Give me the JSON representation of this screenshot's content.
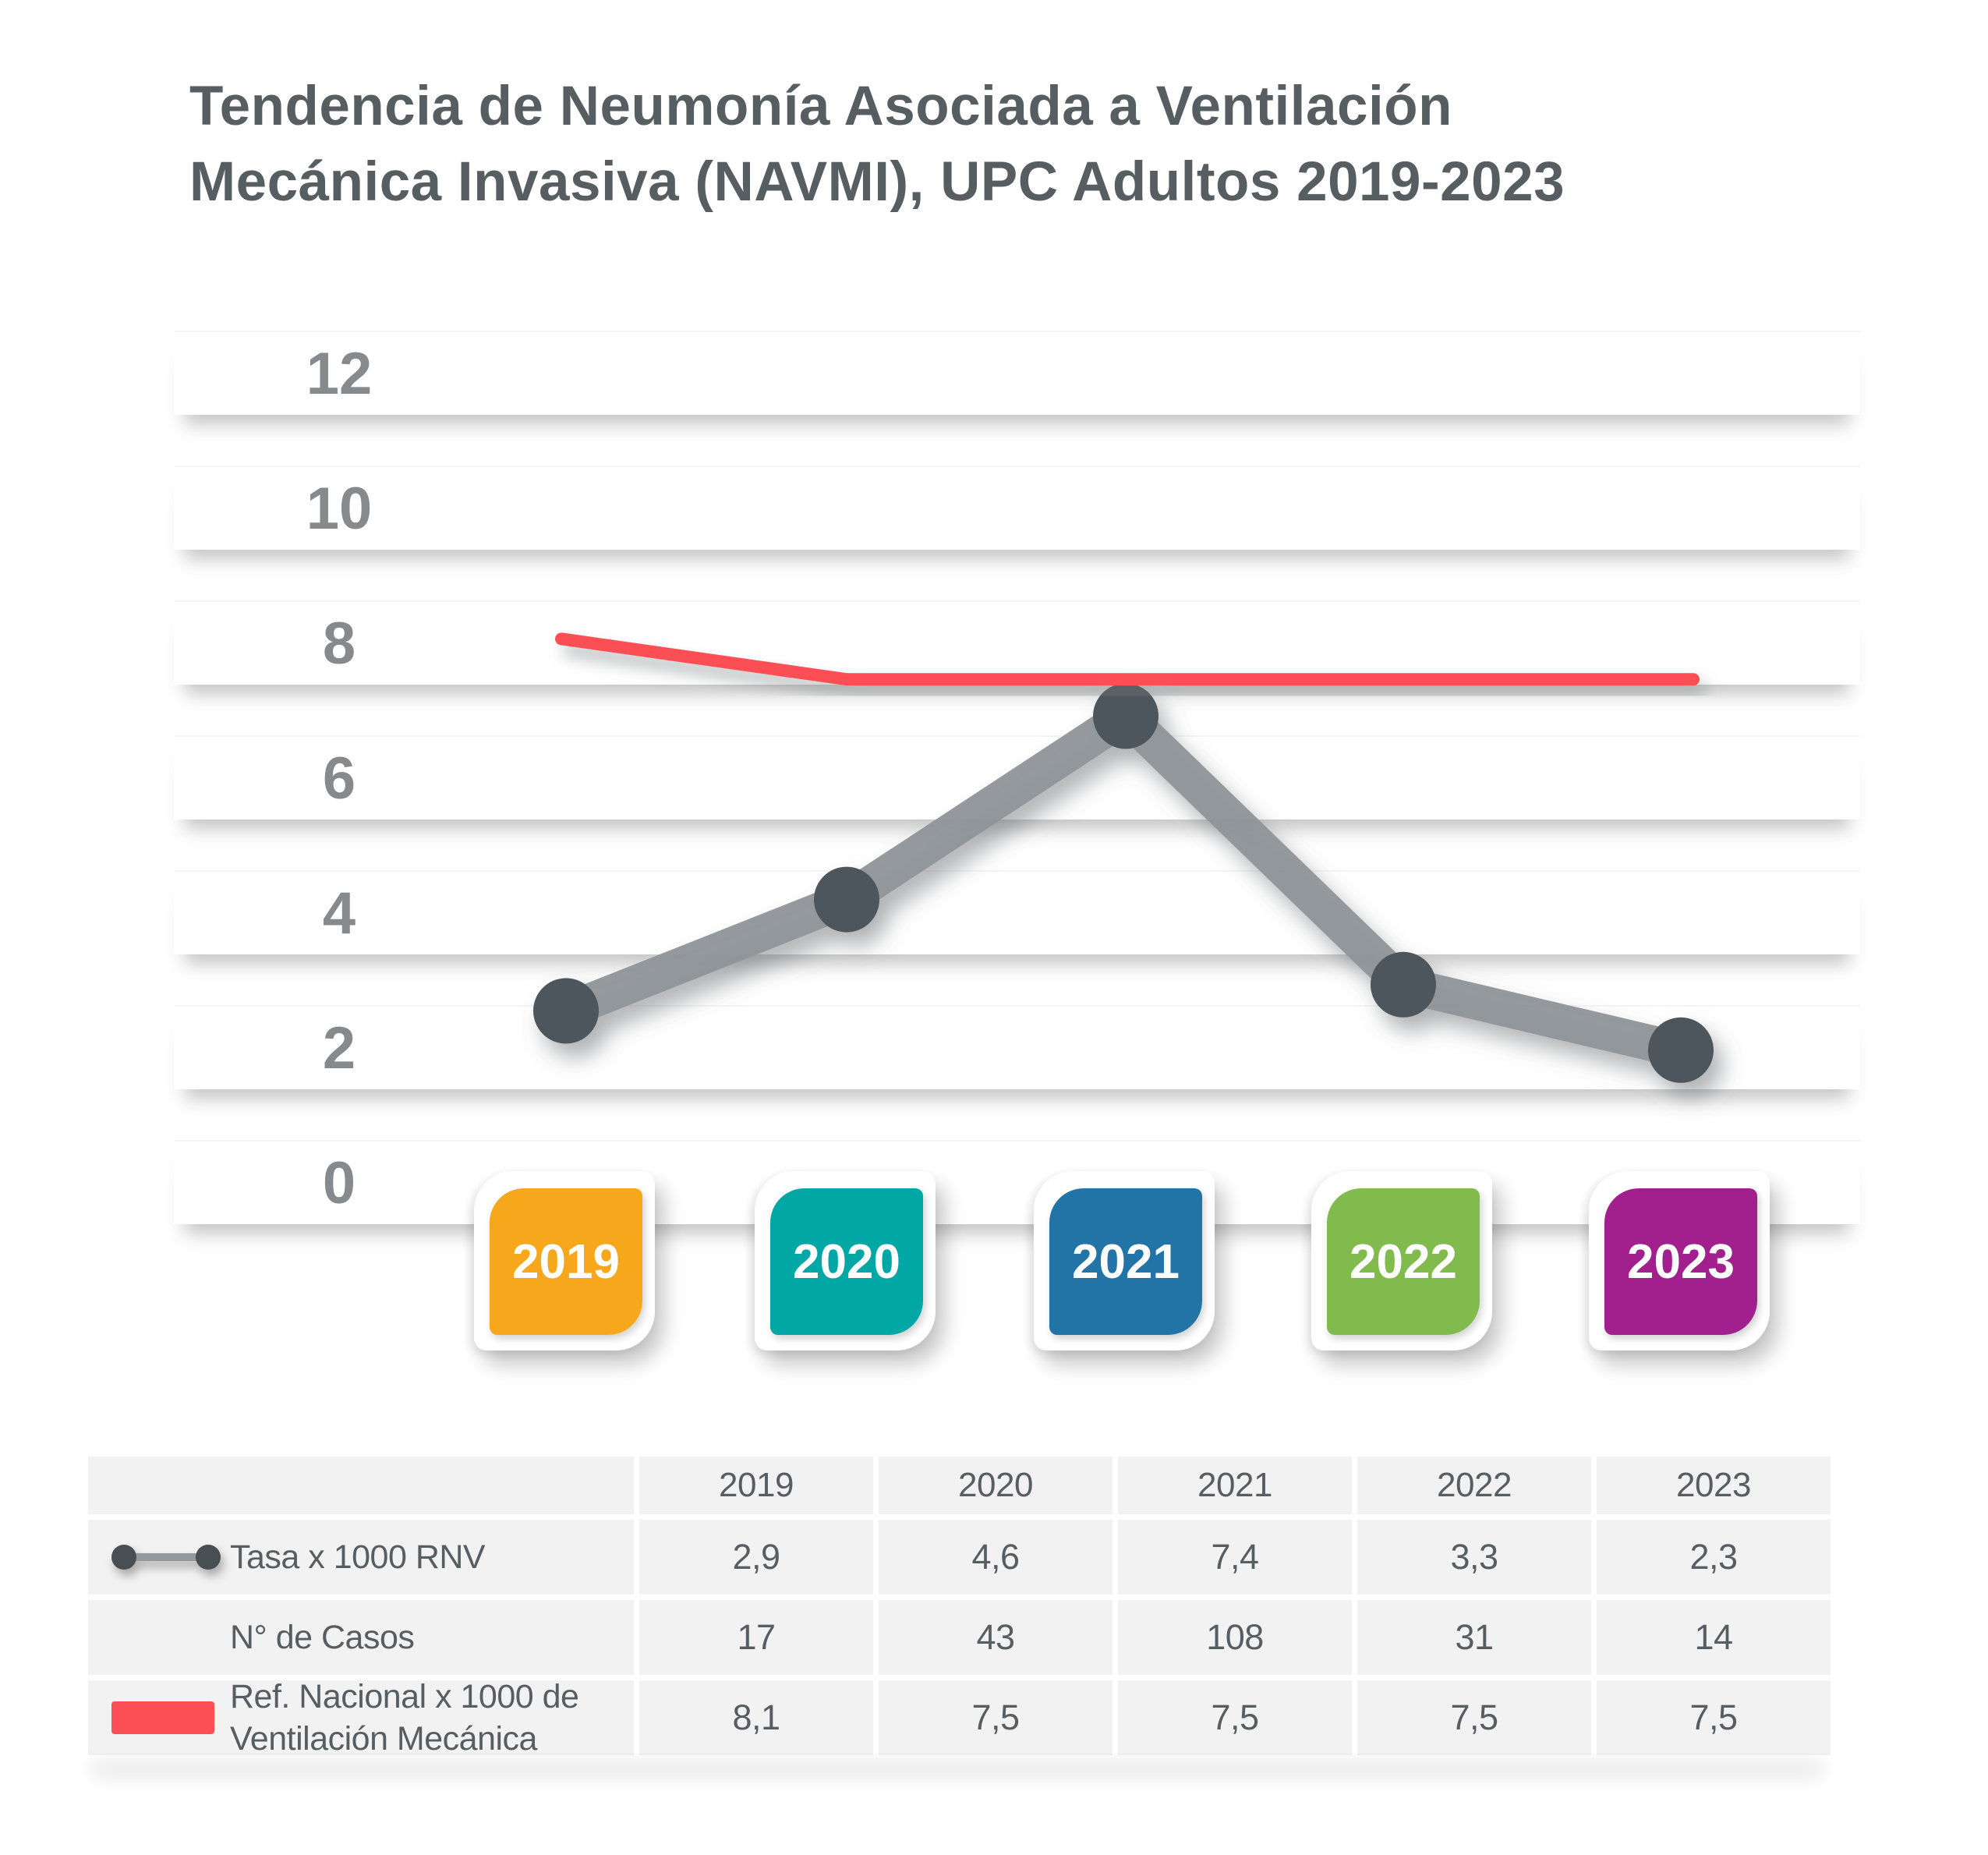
{
  "title": {
    "line1": "Tendencia de Neumonía Asociada a Ventilación",
    "line2": "Mecánica Invasiva (NAVMI), UPC Adultos 2019-2023"
  },
  "chart": {
    "yticks": [
      "12",
      "10",
      "8",
      "6",
      "4",
      "2",
      "0"
    ],
    "years": [
      {
        "label": "2019",
        "color": "#F7A71C"
      },
      {
        "label": "2020",
        "color": "#01A7A4"
      },
      {
        "label": "2021",
        "color": "#2273A6"
      },
      {
        "label": "2022",
        "color": "#81BB4D"
      },
      {
        "label": "2023",
        "color": "#A2208D"
      }
    ]
  },
  "chart_data": {
    "type": "line",
    "title": "Tendencia de Neumonía Asociada a Ventilación Mecánica Invasiva (NAVMI), UPC Adultos 2019-2023",
    "categories": [
      "2019",
      "2020",
      "2021",
      "2022",
      "2023"
    ],
    "series": [
      {
        "name": "Tasa x 1000 RNV",
        "values": [
          2.9,
          4.6,
          7.4,
          3.3,
          2.3
        ],
        "color": "#4E575B",
        "line_color": "#8F9599",
        "style": "thick-gray-line-with-dots"
      },
      {
        "name": "N° de Casos",
        "values": [
          17,
          43,
          108,
          31,
          14
        ],
        "style": "table-only"
      },
      {
        "name": "Ref. Nacional x 1000 de Ventilación Mecánica",
        "values": [
          8.1,
          7.5,
          7.5,
          7.5,
          7.5
        ],
        "color": "#FC4F55",
        "style": "red-line"
      }
    ],
    "ylim": [
      0,
      12
    ],
    "yticks": [
      0,
      2,
      4,
      6,
      8,
      10,
      12
    ],
    "grid": "horizontal-white-bands",
    "legend_position": "table-below-chart"
  },
  "table": {
    "header": [
      "",
      "2019",
      "2020",
      "2021",
      "2022",
      "2023"
    ],
    "rows": [
      {
        "icon": "gray-line-dots-icon",
        "label": "Tasa x 1000 RNV",
        "values": [
          "2,9",
          "4,6",
          "7,4",
          "3,3",
          "2,3"
        ]
      },
      {
        "icon": "none",
        "label": "N° de Casos",
        "values": [
          "17",
          "43",
          "108",
          "31",
          "14"
        ]
      },
      {
        "icon": "red-line-icon",
        "label": "Ref. Nacional x 1000 de Ventilación Mecánica",
        "values": [
          "8,1",
          "7,5",
          "7,5",
          "7,5",
          "7,5"
        ]
      }
    ]
  },
  "colors": {
    "title_text": "#575E62",
    "axis_text": "#868A8D",
    "table_cell_bg": "#F3F2F2",
    "gray_line": "#8F9599",
    "gray_dot": "#4E575B",
    "red_line": "#FC4F55"
  }
}
